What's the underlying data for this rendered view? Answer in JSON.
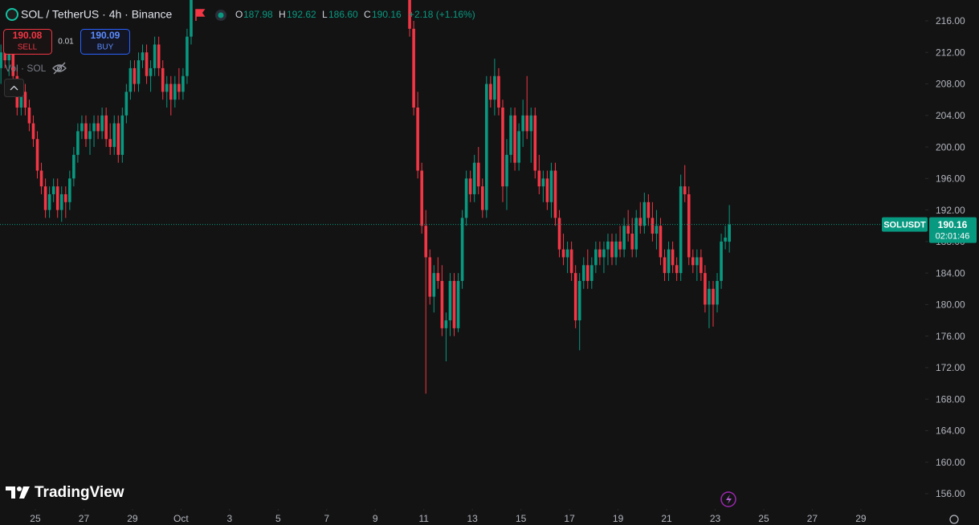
{
  "chart_data": {
    "type": "candlestick",
    "title": "SOL / TetherUS · 4h · Binance",
    "ohlc_header": {
      "o_label": "O",
      "open": "187.98",
      "h_label": "H",
      "high": "192.62",
      "l_label": "L",
      "low": "186.60",
      "c_label": "C",
      "close": "190.16",
      "change": "+2.18 (+1.16%)"
    },
    "trade": {
      "sell_price": "190.08",
      "sell_label": "SELL",
      "spread": "0.01",
      "buy_price": "190.09",
      "buy_label": "BUY"
    },
    "volume_label": "Vol · SOL",
    "brand": "TradingView",
    "symbol_label": "SOLUSDT",
    "last_price": {
      "value": 190.16,
      "label": "190.16"
    },
    "countdown": "02:01:46",
    "up_color": "#089981",
    "down_color": "#f23645",
    "xlim": [
      0.27,
      228.5
    ],
    "xticks": [
      {
        "value": 9,
        "label": "25"
      },
      {
        "value": 21,
        "label": "27"
      },
      {
        "value": 33,
        "label": "29"
      },
      {
        "value": 45,
        "label": "Oct"
      },
      {
        "value": 57,
        "label": "3"
      },
      {
        "value": 69,
        "label": "5"
      },
      {
        "value": 81,
        "label": "7"
      },
      {
        "value": 93,
        "label": "9"
      },
      {
        "value": 105,
        "label": "11"
      },
      {
        "value": 117,
        "label": "13"
      },
      {
        "value": 129,
        "label": "15"
      },
      {
        "value": 141,
        "label": "17"
      },
      {
        "value": 153,
        "label": "19"
      },
      {
        "value": 165,
        "label": "21"
      },
      {
        "value": 177,
        "label": "23"
      },
      {
        "value": 189,
        "label": "25"
      },
      {
        "value": 201,
        "label": "27"
      },
      {
        "value": 213,
        "label": "29"
      }
    ],
    "ylim": [
      154.27,
      218.65
    ],
    "yticks": [
      {
        "value": 156,
        "label": "156.00"
      },
      {
        "value": 160,
        "label": "160.00"
      },
      {
        "value": 164,
        "label": "164.00"
      },
      {
        "value": 168,
        "label": "168.00"
      },
      {
        "value": 172,
        "label": "172.00"
      },
      {
        "value": 176,
        "label": "176.00"
      },
      {
        "value": 180,
        "label": "180.00"
      },
      {
        "value": 184,
        "label": "184.00"
      },
      {
        "value": 188,
        "label": "188.00"
      },
      {
        "value": 192,
        "label": "192.00"
      },
      {
        "value": 196,
        "label": "196.00"
      },
      {
        "value": 200,
        "label": "200.00"
      },
      {
        "value": 204,
        "label": "204.00"
      },
      {
        "value": 208,
        "label": "208.00"
      },
      {
        "value": 212,
        "label": "212.00"
      },
      {
        "value": 216,
        "label": "216.00"
      }
    ],
    "ohlc": [
      [
        210,
        213,
        208,
        212
      ],
      [
        212,
        214,
        210,
        211
      ],
      [
        211,
        213,
        209,
        212
      ],
      [
        212,
        213,
        208,
        209
      ],
      [
        209,
        210,
        204,
        205
      ],
      [
        205,
        208,
        204,
        207
      ],
      [
        207,
        208,
        204,
        205
      ],
      [
        205,
        206,
        202,
        203
      ],
      [
        203,
        204,
        200,
        201
      ],
      [
        201,
        202,
        196,
        197
      ],
      [
        197,
        198,
        194,
        195
      ],
      [
        195,
        196,
        191,
        192
      ],
      [
        192,
        195,
        191,
        194
      ],
      [
        194,
        196,
        193,
        195
      ],
      [
        195,
        196,
        191,
        192
      ],
      [
        192,
        195,
        190.5,
        194
      ],
      [
        194,
        195,
        191,
        193
      ],
      [
        193,
        197,
        192,
        196
      ],
      [
        196,
        200,
        195,
        199
      ],
      [
        199,
        203,
        198,
        202
      ],
      [
        202,
        204,
        201,
        203
      ],
      [
        203,
        204,
        200,
        201
      ],
      [
        201,
        203,
        199,
        202
      ],
      [
        202,
        204,
        200,
        203
      ],
      [
        203,
        204,
        201,
        202
      ],
      [
        202,
        205,
        201,
        204
      ],
      [
        204,
        205,
        200,
        201
      ],
      [
        201,
        203,
        199,
        200
      ],
      [
        200,
        204,
        199,
        203
      ],
      [
        203,
        204,
        198,
        199
      ],
      [
        199,
        205,
        198,
        204
      ],
      [
        204,
        208,
        203,
        207
      ],
      [
        207,
        211,
        206,
        210
      ],
      [
        210,
        211,
        207,
        208
      ],
      [
        208,
        212,
        207,
        211
      ],
      [
        211,
        213,
        210,
        212
      ],
      [
        212,
        213,
        208,
        209
      ],
      [
        209,
        211,
        207,
        210
      ],
      [
        210,
        214,
        209,
        213
      ],
      [
        213,
        214,
        209,
        210
      ],
      [
        210,
        211,
        206,
        207
      ],
      [
        207,
        209,
        205,
        208
      ],
      [
        208,
        209,
        204,
        206
      ],
      [
        206,
        209,
        205,
        208
      ],
      [
        208,
        210,
        206,
        207
      ],
      [
        207,
        210,
        206,
        209
      ],
      [
        209,
        215,
        208,
        214
      ],
      [
        214,
        220,
        213,
        219
      ],
      null,
      null,
      null,
      null,
      null,
      null,
      null,
      null,
      null,
      null,
      null,
      null,
      null,
      null,
      null,
      null,
      null,
      null,
      null,
      null,
      null,
      null,
      null,
      null,
      null,
      null,
      null,
      null,
      null,
      null,
      null,
      null,
      null,
      null,
      null,
      null,
      null,
      null,
      null,
      null,
      null,
      null,
      null,
      null,
      null,
      null,
      null,
      null,
      null,
      null,
      null,
      null,
      null,
      [
        222,
        224,
        214,
        215
      ],
      [
        215,
        216,
        204,
        205
      ],
      [
        205,
        207,
        196,
        197
      ],
      [
        197,
        198,
        189,
        190
      ],
      [
        190,
        192,
        168.7,
        186
      ],
      [
        186,
        187,
        180,
        181
      ],
      [
        181,
        185,
        179,
        184
      ],
      [
        184,
        186,
        182,
        183
      ],
      [
        183,
        185,
        176,
        177
      ],
      [
        177,
        179,
        172.8,
        178
      ],
      [
        178,
        184,
        176,
        183
      ],
      [
        183,
        184,
        176,
        177
      ],
      [
        177,
        184,
        176.5,
        183
      ],
      [
        183,
        192,
        182,
        191
      ],
      [
        191,
        197,
        190,
        196
      ],
      [
        196,
        197,
        193,
        194
      ],
      [
        194,
        199,
        193,
        198
      ],
      [
        198,
        200,
        194,
        195
      ],
      [
        195,
        196,
        191,
        192
      ],
      [
        192,
        209,
        191,
        208
      ],
      [
        208,
        209,
        205,
        206
      ],
      [
        206,
        211.2,
        204,
        209
      ],
      [
        209,
        210,
        204,
        205
      ],
      [
        205,
        206,
        193,
        195
      ],
      [
        195,
        201,
        192,
        199
      ],
      [
        199,
        205,
        198,
        204
      ],
      [
        204,
        205,
        197,
        198
      ],
      [
        198,
        203,
        197,
        202
      ],
      [
        202,
        206,
        200,
        204
      ],
      [
        204,
        209,
        201,
        202
      ],
      [
        202,
        205,
        198,
        204
      ],
      [
        204,
        205,
        196,
        197
      ],
      [
        197,
        199,
        194,
        195
      ],
      [
        195,
        197,
        193,
        196
      ],
      [
        196,
        197,
        192,
        193
      ],
      [
        193,
        198,
        191,
        197
      ],
      [
        197,
        198,
        190,
        191
      ],
      [
        191,
        192,
        186,
        187
      ],
      [
        187,
        189,
        185,
        186
      ],
      [
        186,
        188,
        184,
        187
      ],
      [
        187,
        188,
        183,
        184
      ],
      [
        184,
        185,
        177,
        178
      ],
      [
        178,
        184,
        174.2,
        183
      ],
      [
        183,
        186,
        182,
        185
      ],
      [
        185,
        187,
        182,
        183
      ],
      [
        183,
        186,
        182,
        185
      ],
      [
        185,
        188,
        184,
        187
      ],
      [
        187,
        188,
        185,
        186
      ],
      [
        186,
        188,
        184,
        187
      ],
      [
        187,
        189,
        185,
        188
      ],
      [
        188,
        189,
        185,
        186
      ],
      [
        186,
        189,
        185,
        188
      ],
      [
        188,
        190,
        186,
        187
      ],
      [
        187,
        191,
        186,
        190
      ],
      [
        190,
        192,
        188,
        189
      ],
      [
        189,
        191,
        186,
        187
      ],
      [
        187,
        192,
        186,
        191
      ],
      [
        191,
        193,
        189,
        190
      ],
      [
        190,
        194.2,
        189,
        193
      ],
      [
        193,
        194,
        190,
        191
      ],
      [
        191,
        193,
        188,
        189
      ],
      [
        189,
        192,
        187,
        190
      ],
      [
        190,
        191,
        185,
        186
      ],
      [
        186,
        187,
        183,
        184
      ],
      [
        184,
        188,
        183,
        187
      ],
      [
        187,
        188,
        184,
        185
      ],
      [
        185,
        186,
        183,
        184
      ],
      [
        184,
        196.5,
        183,
        195
      ],
      [
        195,
        197.7,
        193,
        194
      ],
      [
        194,
        195,
        185,
        186
      ],
      [
        186,
        187,
        184,
        185
      ],
      [
        185,
        187,
        183,
        186
      ],
      [
        186,
        187,
        183,
        184
      ],
      [
        184,
        185,
        179,
        180
      ],
      [
        180,
        183,
        177,
        182
      ],
      [
        182,
        183,
        177.2,
        180
      ],
      [
        180,
        184,
        179,
        183
      ],
      [
        183,
        189,
        182,
        188
      ],
      [
        188,
        190,
        187,
        188.5
      ],
      [
        187.98,
        192.62,
        186.6,
        190.16
      ]
    ]
  }
}
